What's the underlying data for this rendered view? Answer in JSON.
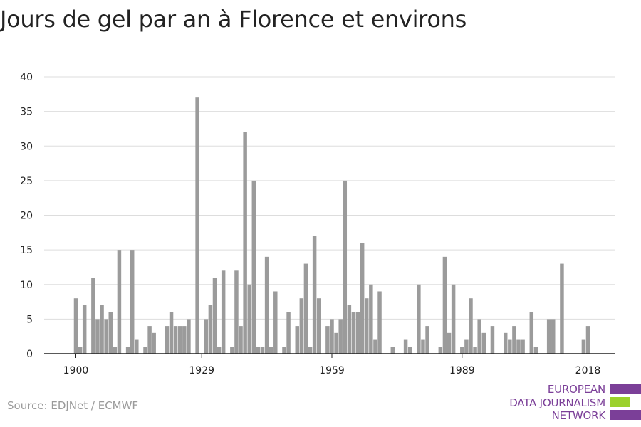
{
  "title": "Jours de gel par an à Florence et environs",
  "source": "Source: EDJNet / ECMWF",
  "logo": {
    "lines": [
      "EUROPEAN",
      "DATA JOURNALISM",
      "NETWORK"
    ],
    "colors": {
      "purple": "#7b3f98",
      "green": "#9bd12c"
    }
  },
  "colors": {
    "bar": "#9b9b9b",
    "grid": "#dddddd",
    "axis": "#222222"
  },
  "chart_data": {
    "type": "bar",
    "title": "Jours de gel par an à Florence et environs",
    "xlabel": "",
    "ylabel": "",
    "ylim": [
      0,
      40
    ],
    "yticks": [
      0,
      5,
      10,
      15,
      20,
      25,
      30,
      35,
      40
    ],
    "xticks": [
      1900,
      1929,
      1959,
      1989,
      2018
    ],
    "grid": true,
    "categories": [
      1900,
      1901,
      1902,
      1903,
      1904,
      1905,
      1906,
      1907,
      1908,
      1909,
      1910,
      1911,
      1912,
      1913,
      1914,
      1915,
      1916,
      1917,
      1918,
      1919,
      1920,
      1921,
      1922,
      1923,
      1924,
      1925,
      1926,
      1927,
      1928,
      1929,
      1930,
      1931,
      1932,
      1933,
      1934,
      1935,
      1936,
      1937,
      1938,
      1939,
      1940,
      1941,
      1942,
      1943,
      1944,
      1945,
      1946,
      1947,
      1948,
      1949,
      1950,
      1951,
      1952,
      1953,
      1954,
      1955,
      1956,
      1957,
      1958,
      1959,
      1960,
      1961,
      1962,
      1963,
      1964,
      1965,
      1966,
      1967,
      1968,
      1969,
      1970,
      1971,
      1972,
      1973,
      1974,
      1975,
      1976,
      1977,
      1978,
      1979,
      1980,
      1981,
      1982,
      1983,
      1984,
      1985,
      1986,
      1987,
      1988,
      1989,
      1990,
      1991,
      1992,
      1993,
      1994,
      1995,
      1996,
      1997,
      1998,
      1999,
      2000,
      2001,
      2002,
      2003,
      2004,
      2005,
      2006,
      2007,
      2008,
      2009,
      2010,
      2011,
      2012,
      2013,
      2014,
      2015,
      2016,
      2017,
      2018
    ],
    "values": [
      8,
      1,
      7,
      0,
      11,
      5,
      7,
      5,
      6,
      1,
      15,
      0,
      1,
      15,
      2,
      0,
      1,
      4,
      3,
      0,
      0,
      4,
      6,
      4,
      4,
      4,
      5,
      0,
      37,
      0,
      5,
      7,
      11,
      1,
      12,
      0,
      1,
      12,
      4,
      32,
      10,
      25,
      1,
      1,
      14,
      1,
      9,
      0,
      1,
      6,
      0,
      4,
      8,
      13,
      1,
      17,
      8,
      0,
      4,
      5,
      3,
      5,
      25,
      7,
      6,
      6,
      16,
      8,
      10,
      2,
      9,
      0,
      0,
      1,
      0,
      0,
      2,
      1,
      0,
      10,
      2,
      4,
      0,
      0,
      1,
      14,
      3,
      10,
      0,
      1,
      2,
      8,
      1,
      5,
      3,
      0,
      4,
      0,
      0,
      3,
      2,
      4,
      2,
      2,
      0,
      6,
      1,
      0,
      0,
      5,
      5,
      0,
      13,
      0,
      0,
      0,
      0,
      2,
      4
    ]
  }
}
